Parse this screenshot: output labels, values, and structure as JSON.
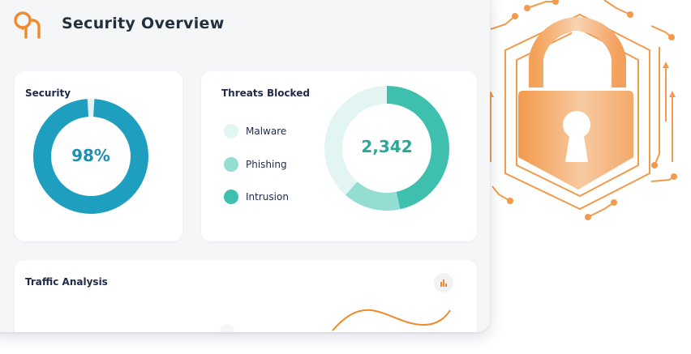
{
  "header": {
    "title": "Security Overview",
    "logo_icon": "brand-logo-icon"
  },
  "security_card": {
    "title": "Security",
    "value_label": "98%",
    "value_fraction": 0.98,
    "ring_color": "#1e9fc0"
  },
  "threats_card": {
    "title": "Threats Blocked",
    "total": "2,342",
    "legend": [
      {
        "label": "Malware",
        "color": "#e3f5f3"
      },
      {
        "label": "Phishing",
        "color": "#93ddd3"
      },
      {
        "label": "Intrusion",
        "color": "#3fc0ae"
      }
    ]
  },
  "traffic_card": {
    "title": "Traffic Analysis",
    "action_icon": "bar-chart-icon",
    "line_color": "#ee8a2a"
  },
  "illustration": {
    "icon": "padlock-circuit-icon",
    "accent": "#f29a4a"
  }
}
